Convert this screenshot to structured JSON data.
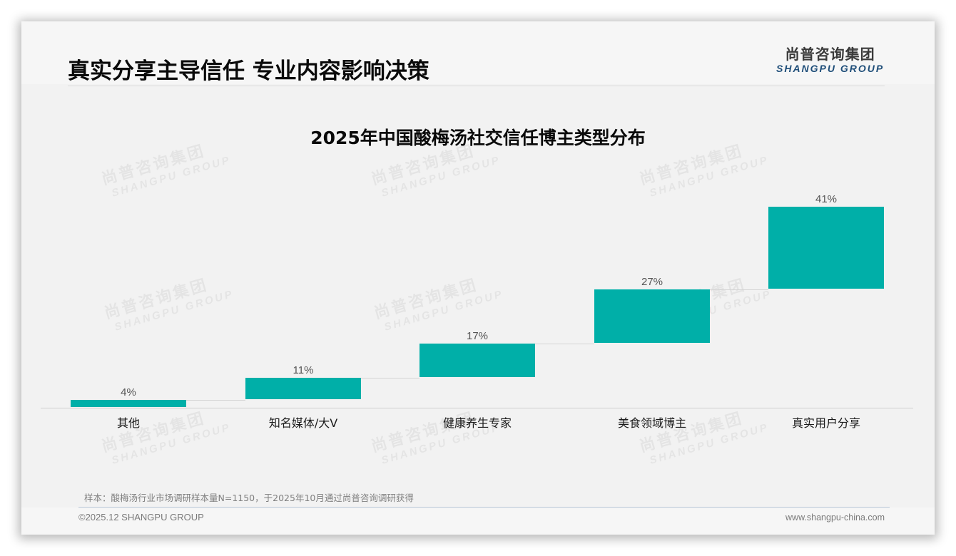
{
  "header": {
    "title": "真实分享主导信任 专业内容影响决策",
    "logo_cn": "尚普咨询集团",
    "logo_en": "SHANGPU GROUP"
  },
  "watermark": {
    "cn": "尚普咨询集团",
    "en": "SHANGPU GROUP"
  },
  "colors": {
    "bar": "#00afa8",
    "logo_en": "#1f4e79",
    "background": "#f2f2f2"
  },
  "chart_data": {
    "type": "bar",
    "subtype": "waterfall",
    "title": "2025年中国酸梅汤社交信任博主类型分布",
    "categories": [
      "其他",
      "知名媒体/大V",
      "健康养生专家",
      "美食领域博主",
      "真实用户分享"
    ],
    "values": [
      4,
      11,
      17,
      27,
      41
    ],
    "value_labels": [
      "4%",
      "11%",
      "17%",
      "27%",
      "41%"
    ],
    "unit": "%",
    "xlabel": "",
    "ylabel": "",
    "ylim": [
      0,
      100
    ],
    "grid": false,
    "legend": null,
    "notes": "Waterfall layout: each bar starts where the previous one ends; connector lines link consecutive bars"
  },
  "footer": {
    "note": "样本：酸梅汤行业市场调研样本量N=1150，于2025年10月通过尚普咨询调研获得",
    "copyright": "©2025.12 SHANGPU GROUP",
    "url": "www.shangpu-china.com"
  }
}
